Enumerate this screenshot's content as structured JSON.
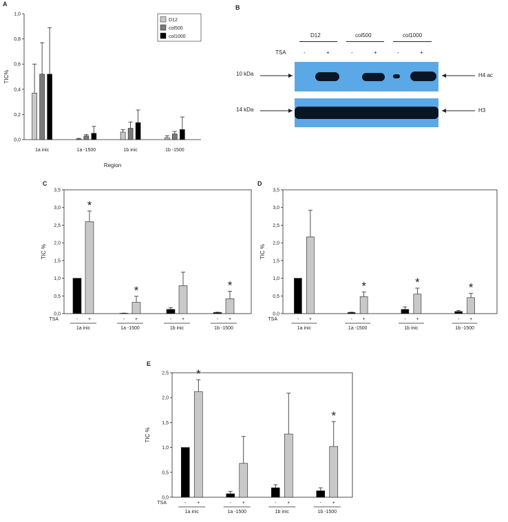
{
  "chart_data": [
    {
      "panel": "A",
      "type": "bar",
      "ylabel": "TIC%",
      "xlabel": "Region",
      "ylim": [
        0,
        1.0
      ],
      "yticks": [
        "0,0",
        "0,2",
        "0,4",
        "0,6",
        "0,8",
        "1,0"
      ],
      "categories": [
        "1a inic",
        "1a -1500",
        "1b inic",
        "1b -1500"
      ],
      "legend_position": "top-right",
      "series": [
        {
          "name": "D12",
          "color": "#c8c8c8",
          "values": [
            0.37,
            0.005,
            0.06,
            0.015
          ],
          "errors": [
            0.23,
            0.005,
            0.02,
            0.015
          ]
        },
        {
          "name": "col500",
          "color": "#7a7a7a",
          "values": [
            0.52,
            0.03,
            0.09,
            0.045
          ],
          "errors": [
            0.25,
            0.01,
            0.05,
            0.02
          ]
        },
        {
          "name": "col1000",
          "color": "#000000",
          "values": [
            0.52,
            0.05,
            0.135,
            0.08
          ],
          "errors": [
            0.37,
            0.055,
            0.1,
            0.1
          ]
        }
      ]
    },
    {
      "panel": "C",
      "type": "bar",
      "ylabel": "TIC %",
      "xlabel": "",
      "ylim": [
        0,
        3.5
      ],
      "yticks": [
        "0,0",
        "0,5",
        "1,0",
        "1,5",
        "2,0",
        "2,5",
        "3,0",
        "3,5"
      ],
      "categories": [
        "1a inic",
        "1a -1500",
        "1b inic",
        "1b -1500"
      ],
      "tsa_label": "TSA",
      "tsa_signs": [
        "-",
        "+"
      ],
      "series": [
        {
          "name": "-",
          "color": "#000000",
          "values": [
            1.0,
            0.01,
            0.12,
            0.03
          ],
          "errors": [
            0,
            0.005,
            0.05,
            0.01
          ]
        },
        {
          "name": "+",
          "color": "#c8c8c8",
          "values": [
            2.6,
            0.32,
            0.79,
            0.42
          ],
          "errors": [
            0.3,
            0.17,
            0.38,
            0.21
          ]
        }
      ],
      "significant": [
        [
          false,
          true
        ],
        [
          false,
          true
        ],
        [
          false,
          false
        ],
        [
          false,
          true
        ]
      ]
    },
    {
      "panel": "D",
      "type": "bar",
      "ylabel": "TIC %",
      "xlabel": "",
      "ylim": [
        0,
        3.5
      ],
      "yticks": [
        "0,0",
        "0,5",
        "1,0",
        "1,5",
        "2,0",
        "2,5",
        "3,0",
        "3,5"
      ],
      "categories": [
        "1a inic",
        "1a -1500",
        "1b inic",
        "1b -1500"
      ],
      "tsa_label": "TSA",
      "tsa_signs": [
        "-",
        "+"
      ],
      "series": [
        {
          "name": "-",
          "color": "#000000",
          "values": [
            1.0,
            0.03,
            0.12,
            0.06
          ],
          "errors": [
            0,
            0.01,
            0.07,
            0.03
          ]
        },
        {
          "name": "+",
          "color": "#c8c8c8",
          "values": [
            2.17,
            0.48,
            0.55,
            0.45
          ],
          "errors": [
            0.75,
            0.13,
            0.17,
            0.12
          ]
        }
      ],
      "significant": [
        [
          false,
          false
        ],
        [
          false,
          true
        ],
        [
          false,
          true
        ],
        [
          false,
          true
        ]
      ]
    },
    {
      "panel": "E",
      "type": "bar",
      "ylabel": "TIC %",
      "xlabel": "",
      "ylim": [
        0,
        2.5
      ],
      "yticks": [
        "0,0",
        "0,5",
        "1,0",
        "1,5",
        "2,0",
        "2,5"
      ],
      "categories": [
        "1a inic",
        "1a -1500",
        "1b inic",
        "1b -1500"
      ],
      "tsa_label": "TSA",
      "tsa_signs": [
        "-",
        "+"
      ],
      "series": [
        {
          "name": "-",
          "color": "#000000",
          "values": [
            1.0,
            0.07,
            0.19,
            0.13
          ],
          "errors": [
            0,
            0.05,
            0.06,
            0.06
          ]
        },
        {
          "name": "+",
          "color": "#c8c8c8",
          "values": [
            2.12,
            0.68,
            1.27,
            1.02
          ],
          "errors": [
            0.24,
            0.54,
            0.82,
            0.5
          ]
        }
      ],
      "significant": [
        [
          false,
          true
        ],
        [
          false,
          false
        ],
        [
          false,
          false
        ],
        [
          false,
          true
        ]
      ]
    }
  ],
  "panel_letters": {
    "A": "A",
    "B": "B",
    "C": "C",
    "D": "D",
    "E": "E"
  },
  "blot": {
    "groups": [
      "D12",
      "col500",
      "col1000"
    ],
    "tsa_label": "TSA",
    "tsa_signs": [
      "-",
      "+",
      "-",
      "+",
      "-",
      "+"
    ],
    "left_markers": [
      "10 kDa",
      "14 kDa"
    ],
    "right_labels": [
      "H4 ac",
      "H3"
    ],
    "band_color": "#5aa9e6"
  }
}
